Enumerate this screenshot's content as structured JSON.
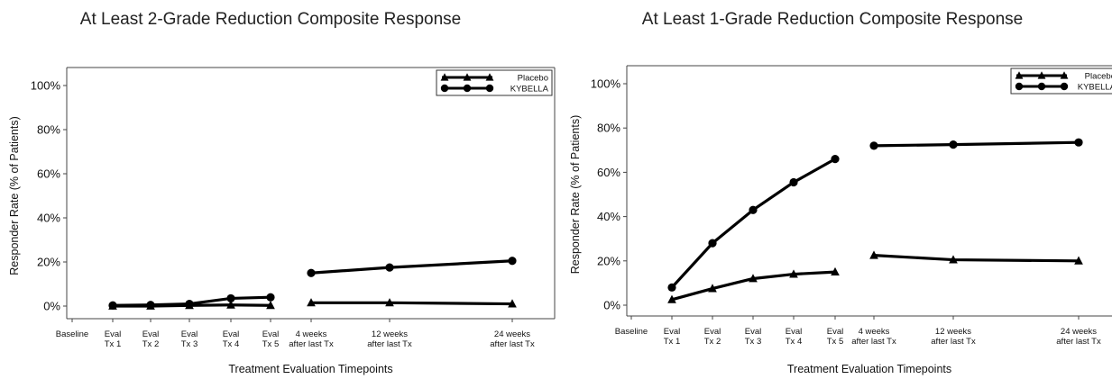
{
  "chart_data": [
    {
      "type": "line",
      "title": "At Least 2-Grade Reduction Composite Response",
      "ylabel": "Responder Rate (% of Patients)",
      "xlabel": "Treatment Evaluation Timepoints",
      "ylim": [
        0,
        100
      ],
      "yticks": [
        "0%",
        "20%",
        "40%",
        "60%",
        "80%",
        "100%"
      ],
      "categories": [
        [
          "Baseline"
        ],
        [
          "Eval",
          "Tx 1"
        ],
        [
          "Eval",
          "Tx 2"
        ],
        [
          "Eval",
          "Tx 3"
        ],
        [
          "Eval",
          "Tx 4"
        ],
        [
          "Eval",
          "Tx 5"
        ],
        [
          "4 weeks",
          "after last Tx"
        ],
        [
          "12 weeks",
          "after last Tx"
        ],
        [
          "24 weeks",
          "after last Tx"
        ]
      ],
      "legend_position": "top-right",
      "series": [
        {
          "name": "Placebo",
          "marker": "triangle",
          "values": [
            null,
            0,
            0,
            0.3,
            0.5,
            0.3,
            1.5,
            1.5,
            1
          ],
          "segments": [
            [
              1,
              5
            ],
            [
              6,
              8
            ]
          ]
        },
        {
          "name": "KYBELLA",
          "marker": "circle",
          "values": [
            null,
            0.3,
            0.5,
            1,
            3.5,
            4,
            15,
            17.5,
            20.5
          ],
          "segments": [
            [
              1,
              5
            ],
            [
              6,
              8
            ]
          ]
        }
      ]
    },
    {
      "type": "line",
      "title": "At Least 1-Grade Reduction Composite Response",
      "ylabel": "Responder Rate (% of Patients)",
      "xlabel": "Treatment Evaluation Timepoints",
      "ylim": [
        0,
        100
      ],
      "yticks": [
        "0%",
        "20%",
        "40%",
        "60%",
        "80%",
        "100%"
      ],
      "categories": [
        [
          "Baseline"
        ],
        [
          "Eval",
          "Tx 1"
        ],
        [
          "Eval",
          "Tx 2"
        ],
        [
          "Eval",
          "Tx 3"
        ],
        [
          "Eval",
          "Tx 4"
        ],
        [
          "Eval",
          "Tx 5"
        ],
        [
          "4 weeks",
          "after last Tx"
        ],
        [
          "12 weeks",
          "after last Tx"
        ],
        [
          "24 weeks",
          "after last Tx"
        ]
      ],
      "legend_position": "top-right",
      "series": [
        {
          "name": "Placebo",
          "marker": "triangle",
          "values": [
            null,
            2.5,
            7.5,
            12,
            14,
            15,
            22.5,
            20.5,
            20
          ],
          "segments": [
            [
              1,
              5
            ],
            [
              6,
              8
            ]
          ]
        },
        {
          "name": "KYBELLA",
          "marker": "circle",
          "values": [
            null,
            8,
            28,
            43,
            55.5,
            66,
            72,
            72.5,
            73.5
          ],
          "segments": [
            [
              1,
              5
            ],
            [
              6,
              8
            ]
          ]
        }
      ]
    }
  ]
}
